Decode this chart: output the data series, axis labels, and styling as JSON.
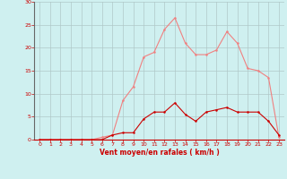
{
  "x": [
    0,
    1,
    2,
    3,
    4,
    5,
    6,
    7,
    8,
    9,
    10,
    11,
    12,
    13,
    14,
    15,
    16,
    17,
    18,
    19,
    20,
    21,
    22,
    23
  ],
  "y_rafales": [
    0,
    0,
    0,
    0,
    0,
    0,
    0.5,
    1,
    8.5,
    11.5,
    18,
    19,
    24,
    26.5,
    21,
    18.5,
    18.5,
    19.5,
    23.5,
    21,
    15.5,
    15,
    13.5,
    0.5
  ],
  "y_moyen": [
    0,
    0,
    0,
    0,
    0,
    0,
    0,
    1,
    1.5,
    1.5,
    4.5,
    6,
    6,
    8,
    5.5,
    4,
    6,
    6.5,
    7,
    6,
    6,
    6,
    4,
    1
  ],
  "bg_color": "#cff0f0",
  "line_color_rafales": "#f08080",
  "line_color_moyen": "#cc0000",
  "grid_color": "#b0c8c8",
  "xlabel": "Vent moyen/en rafales ( km/h )",
  "xlabel_color": "#cc0000",
  "tick_color": "#cc0000",
  "ylim": [
    0,
    30
  ],
  "xlim": [
    -0.5,
    23.5
  ],
  "yticks": [
    0,
    5,
    10,
    15,
    20,
    25,
    30
  ],
  "xticks": [
    0,
    1,
    2,
    3,
    4,
    5,
    6,
    7,
    8,
    9,
    10,
    11,
    12,
    13,
    14,
    15,
    16,
    17,
    18,
    19,
    20,
    21,
    22,
    23
  ]
}
